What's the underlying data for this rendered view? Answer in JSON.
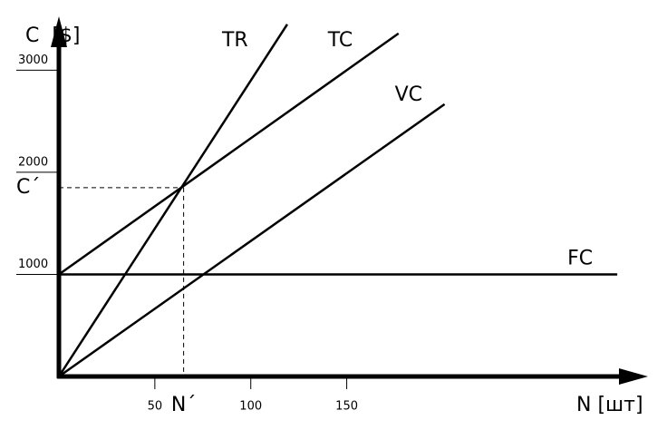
{
  "chart_data": {
    "type": "line",
    "y_label": "C  [$]",
    "x_label": "N [шт]",
    "xlim": [
      0,
      307
    ],
    "ylim": [
      0,
      3510
    ],
    "xticks": [
      50,
      100,
      150
    ],
    "yticks": [
      1000,
      2000,
      3000
    ],
    "series": [
      {
        "name": "TR",
        "color": "#000000",
        "x": [
          0,
          119
        ],
        "values": [
          0,
          3449
        ]
      },
      {
        "name": "TC",
        "color": "#000000",
        "x": [
          0,
          177
        ],
        "values": [
          1000,
          3360
        ]
      },
      {
        "name": "VC",
        "color": "#000000",
        "x": [
          0,
          201
        ],
        "values": [
          0,
          2667
        ]
      },
      {
        "name": "FC",
        "color": "#000000",
        "x": [
          0,
          291
        ],
        "values": [
          1000,
          1000
        ]
      }
    ],
    "break_even": {
      "x": 65,
      "y": 1849,
      "x_label": "N´",
      "y_label": "C´"
    }
  }
}
